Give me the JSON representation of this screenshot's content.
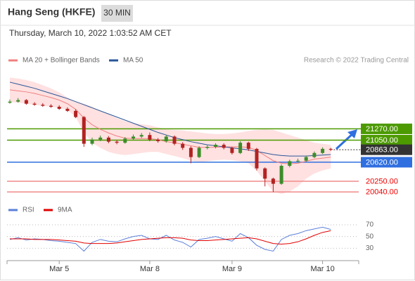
{
  "header": {
    "title": "Hang Seng (HKFE)",
    "interval": "30 MIN",
    "datetime": "Thursday, March 10, 2022 1:03:52 AM CET"
  },
  "chart_data": [
    {
      "type": "candlestick",
      "legend": [
        {
          "name": "MA 20 + Bollinger Bands",
          "color": "#f08080"
        },
        {
          "name": "MA 50",
          "color": "#2a5699"
        }
      ],
      "credit": "Research © 2022 Trading Central",
      "categories": [
        null,
        null,
        null,
        null,
        null,
        null,
        "Mar 5",
        null,
        null,
        null,
        null,
        null,
        null,
        null,
        null,
        null,
        null,
        "Mar 8",
        null,
        null,
        null,
        null,
        null,
        null,
        null,
        null,
        null,
        "Mar 9",
        null,
        null,
        null,
        null,
        null,
        null,
        null,
        null,
        null,
        null,
        "Mar 10",
        null
      ],
      "open": [
        21780,
        21800,
        21830,
        21760,
        21740,
        21720,
        21700,
        21660,
        21620,
        21500,
        20980,
        21060,
        21100,
        21020,
        21000,
        21080,
        21120,
        21150,
        21060,
        21030,
        21120,
        20980,
        20900,
        20720,
        20900,
        20920,
        20960,
        20900,
        20800,
        21000,
        20880,
        20500,
        20300,
        20200,
        20550,
        20640,
        20650,
        20720,
        20800,
        20880
      ],
      "high": [
        21840,
        21870,
        21850,
        21790,
        21770,
        21750,
        21730,
        21690,
        21650,
        21520,
        21100,
        21140,
        21130,
        21050,
        21110,
        21160,
        21190,
        21200,
        21090,
        21150,
        21140,
        21010,
        20930,
        20930,
        20950,
        20990,
        20990,
        20920,
        21030,
        21020,
        20900,
        20520,
        20320,
        20580,
        20670,
        20690,
        20750,
        20830,
        20910,
        20900
      ],
      "low": [
        21760,
        21780,
        21740,
        21720,
        21700,
        21680,
        21640,
        21600,
        21480,
        20920,
        20950,
        21030,
        20990,
        20970,
        20980,
        21050,
        21090,
        21030,
        21000,
        21000,
        20950,
        20860,
        20600,
        20700,
        20870,
        20890,
        20870,
        20770,
        20780,
        20840,
        20460,
        20150,
        20040,
        20180,
        20520,
        20610,
        20630,
        20700,
        20780,
        20840
      ],
      "close": [
        21800,
        21830,
        21760,
        21740,
        21720,
        21700,
        21660,
        21620,
        21500,
        20980,
        21060,
        21100,
        21020,
        21000,
        21080,
        21120,
        21150,
        21060,
        21030,
        21120,
        20980,
        20900,
        20720,
        20900,
        20920,
        20960,
        20900,
        20800,
        21000,
        20880,
        20500,
        20300,
        20200,
        20550,
        20640,
        20650,
        20720,
        20800,
        20880,
        20863
      ],
      "up_color": "#3c8c2a",
      "down_color": "#b22222",
      "bands": {
        "upper": [
          22270,
          22250,
          22220,
          22180,
          22120,
          22060,
          21980,
          21880,
          21800,
          21760,
          21700,
          21620,
          21560,
          21480,
          21420,
          21380,
          21360,
          21340,
          21300,
          21260,
          21250,
          21240,
          21220,
          21200,
          21180,
          21170,
          21170,
          21180,
          21200,
          21230,
          21250,
          21260,
          21250,
          21200,
          21150,
          21100,
          21050,
          21000,
          20980,
          20960
        ],
        "lower": [
          21790,
          21780,
          21760,
          21740,
          21720,
          21700,
          21680,
          21640,
          21500,
          21200,
          21000,
          20900,
          20820,
          20780,
          20760,
          20780,
          20800,
          20820,
          20820,
          20780,
          20740,
          20700,
          20650,
          20620,
          20640,
          20660,
          20670,
          20660,
          20640,
          20600,
          20450,
          20250,
          20050,
          20000,
          20050,
          20150,
          20300,
          20400,
          20460,
          20500
        ],
        "color": "#ffc8c8"
      },
      "series": [
        {
          "name": "MA 20",
          "color": "#f08080",
          "values": [
            22030,
            22010,
            21990,
            21960,
            21920,
            21880,
            21830,
            21760,
            21650,
            21480,
            21350,
            21260,
            21190,
            21130,
            21090,
            21080,
            21080,
            21080,
            21060,
            21020,
            21000,
            20970,
            20940,
            20910,
            20910,
            20910,
            20920,
            20920,
            20920,
            20910,
            20850,
            20750,
            20650,
            20600,
            20590,
            20600,
            20640,
            20680,
            20700,
            20720
          ]
        },
        {
          "name": "MA 50",
          "color": "#2a5699",
          "values": [
            22180,
            22140,
            22100,
            22060,
            22010,
            21960,
            21910,
            21860,
            21800,
            21740,
            21680,
            21620,
            21560,
            21500,
            21440,
            21380,
            21320,
            21260,
            21200,
            21150,
            21100,
            21060,
            21020,
            20990,
            20960,
            20940,
            20920,
            20900,
            20880,
            20860,
            20830,
            20800,
            20770,
            20750,
            20740,
            20740,
            20740,
            20750,
            20760,
            20770
          ]
        }
      ],
      "levels": [
        {
          "value": 21270,
          "label": "21270.00",
          "color": "#4c9a00",
          "boxed": true
        },
        {
          "value": 21050,
          "label": "21050.00",
          "color": "#4c9a00",
          "boxed": true
        },
        {
          "value": 20863,
          "label": "20863.00",
          "color": "#333333",
          "boxed": true
        },
        {
          "value": 20620,
          "label": "20620.00",
          "color": "#2f6fe0",
          "boxed": true
        },
        {
          "value": 20250,
          "label": "20250.00",
          "color": "#f08a8a",
          "boxed": false
        },
        {
          "value": 20040,
          "label": "20040.00",
          "color": "#f08a8a",
          "boxed": false
        }
      ],
      "ylim": [
        19880,
        22480
      ]
    },
    {
      "type": "line",
      "series": [
        {
          "name": "RSI",
          "color": "#5b7fd9",
          "values": [
            45,
            48,
            44,
            46,
            45,
            43,
            42,
            40,
            38,
            25,
            40,
            45,
            42,
            41,
            46,
            50,
            52,
            46,
            45,
            52,
            44,
            40,
            32,
            45,
            47,
            50,
            46,
            42,
            55,
            48,
            35,
            28,
            25,
            45,
            52,
            55,
            60,
            63,
            66,
            62
          ]
        },
        {
          "name": "9MA",
          "color": "#e00000",
          "values": [
            46,
            46,
            46,
            45,
            45,
            45,
            44,
            43,
            42,
            39,
            38,
            38,
            38,
            39,
            41,
            43,
            45,
            46,
            47,
            48,
            48,
            47,
            44,
            43,
            43,
            44,
            45,
            46,
            47,
            48,
            46,
            42,
            38,
            37,
            38,
            41,
            46,
            52,
            57,
            60
          ]
        }
      ],
      "ylim": [
        10,
        88
      ],
      "yticks": [
        70,
        50,
        30
      ],
      "grid": true
    }
  ]
}
